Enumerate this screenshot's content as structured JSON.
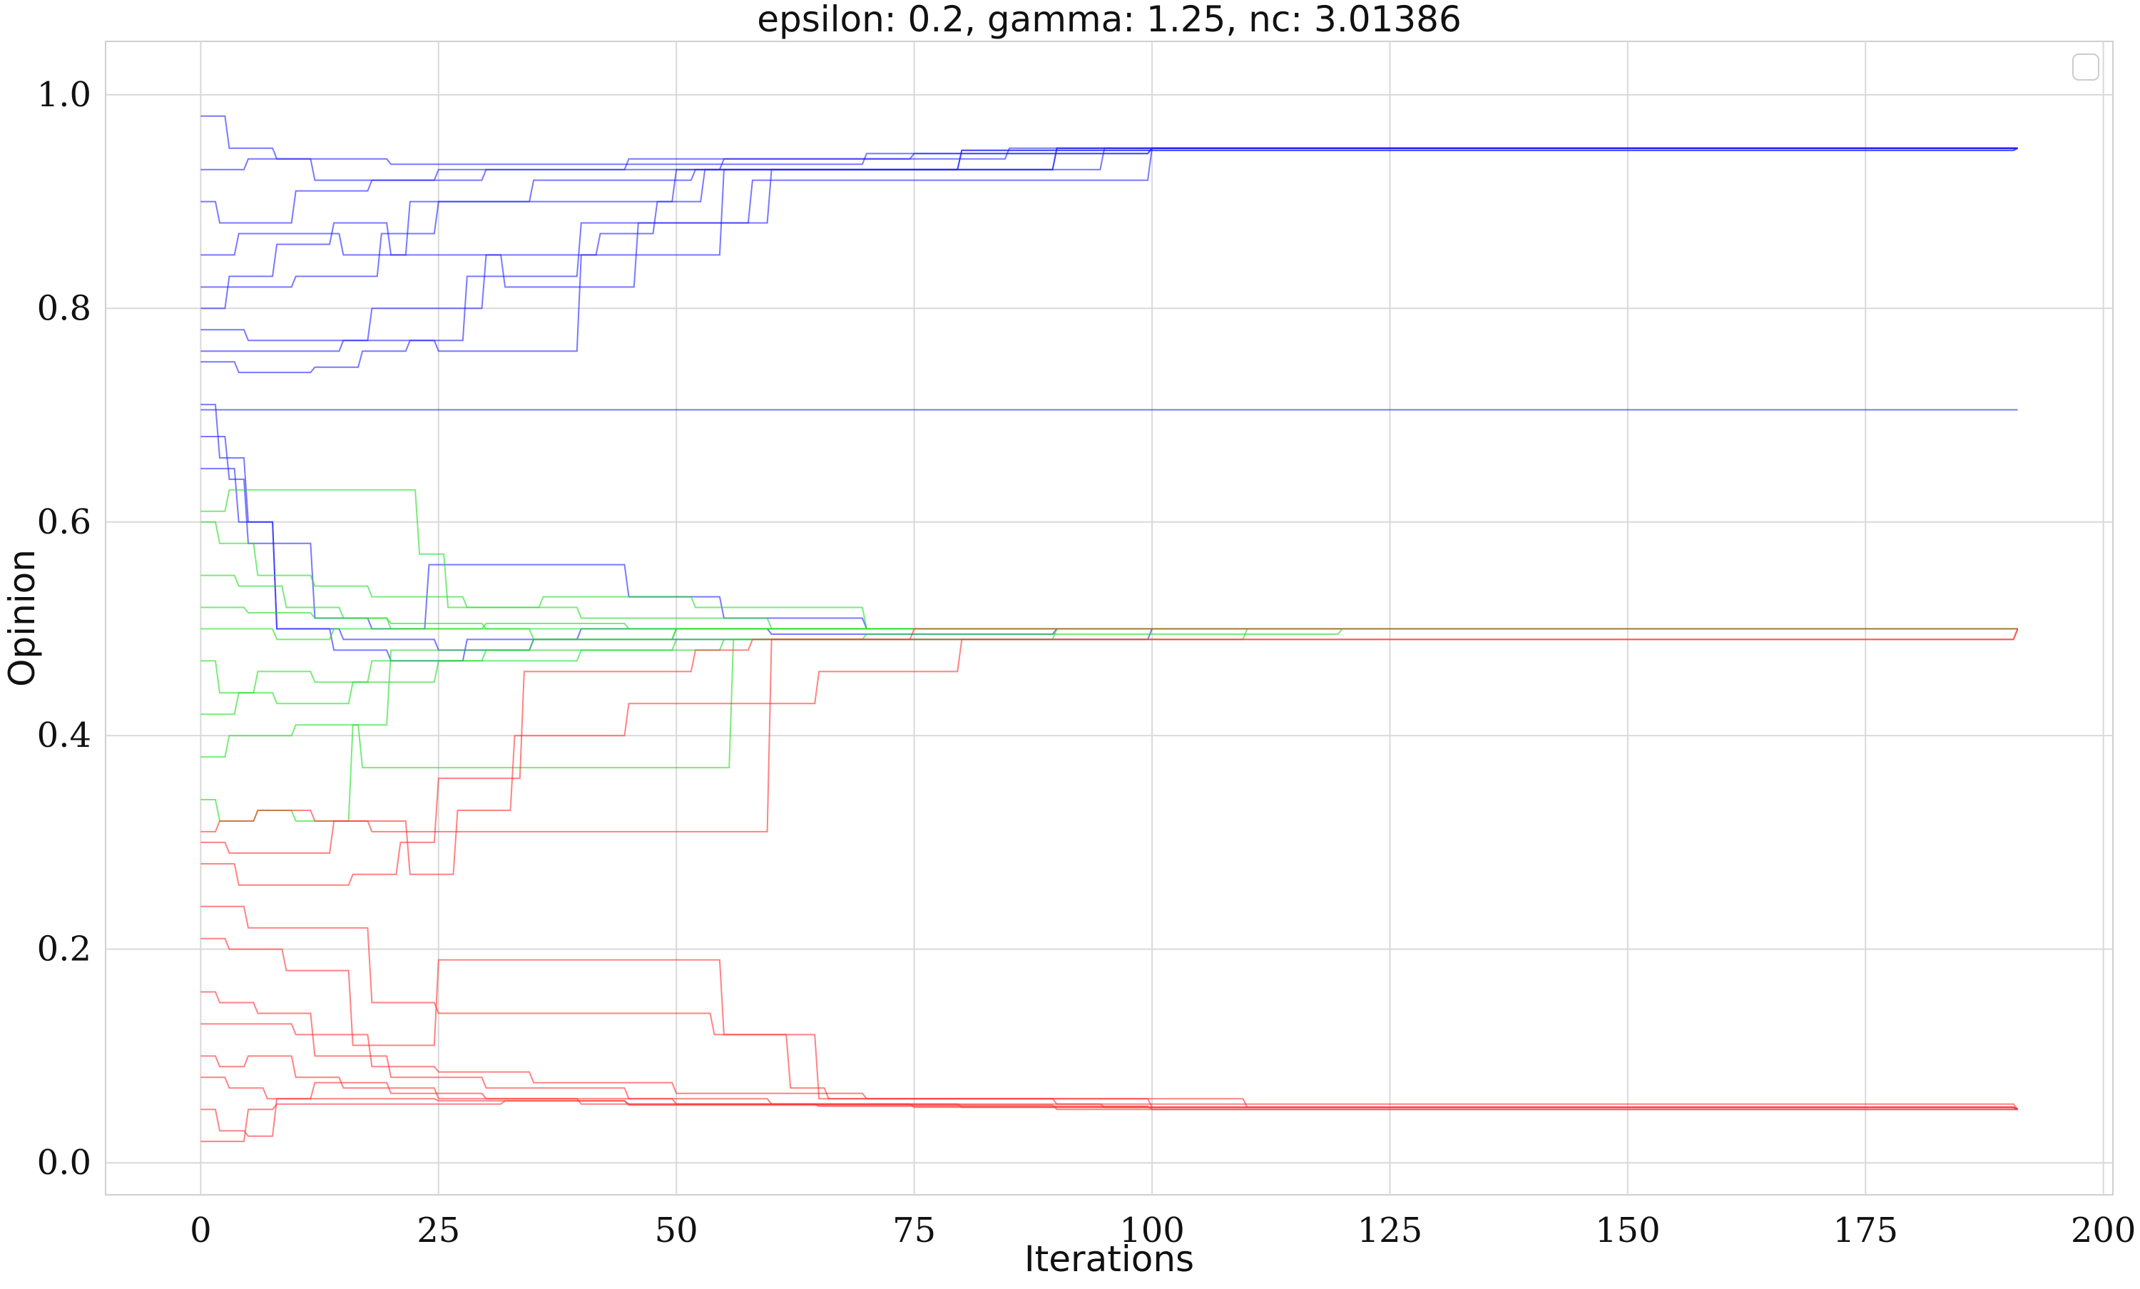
{
  "chart_data": {
    "type": "line",
    "title": "epsilon: 0.2, gamma: 1.25, nc: 3.01386",
    "xlabel": "Iterations",
    "ylabel": "Opinion",
    "xlim": [
      -10,
      201
    ],
    "ylim": [
      -0.03,
      1.05
    ],
    "xticks": [
      0,
      25,
      50,
      75,
      100,
      125,
      150,
      175,
      200
    ],
    "yticks": [
      0.0,
      0.2,
      0.4,
      0.6,
      0.8,
      1.0
    ],
    "xtick_labels": [
      "0",
      "25",
      "50",
      "75",
      "100",
      "125",
      "150",
      "175",
      "200"
    ],
    "ytick_labels": [
      "0.0",
      "0.2",
      "0.4",
      "0.6",
      "0.8",
      "1.0"
    ],
    "grid": true,
    "legend": {
      "placement": "top-right",
      "entries": []
    },
    "colors": {
      "blue": "#1f1fff",
      "green": "#22dd22",
      "red": "#ff3030"
    },
    "series": [
      {
        "color": "blue",
        "x": [
          0,
          3,
          8,
          20,
          40,
          70,
          100,
          191
        ],
        "y": [
          0.98,
          0.95,
          0.94,
          0.935,
          0.935,
          0.945,
          0.95,
          0.95
        ]
      },
      {
        "color": "blue",
        "x": [
          0,
          5,
          12,
          25,
          45,
          75,
          100,
          191
        ],
        "y": [
          0.93,
          0.94,
          0.92,
          0.93,
          0.94,
          0.945,
          0.95,
          0.95
        ]
      },
      {
        "color": "blue",
        "x": [
          0,
          2,
          10,
          18,
          30,
          55,
          85,
          191
        ],
        "y": [
          0.9,
          0.88,
          0.91,
          0.92,
          0.93,
          0.94,
          0.95,
          0.95
        ]
      },
      {
        "color": "blue",
        "x": [
          0,
          4,
          15,
          22,
          35,
          52,
          80,
          191
        ],
        "y": [
          0.85,
          0.87,
          0.85,
          0.9,
          0.92,
          0.93,
          0.948,
          0.95
        ]
      },
      {
        "color": "blue",
        "x": [
          0,
          3,
          10,
          19,
          25,
          45,
          50,
          80,
          191
        ],
        "y": [
          0.82,
          0.82,
          0.83,
          0.87,
          0.9,
          0.9,
          0.93,
          0.948,
          0.95
        ]
      },
      {
        "color": "blue",
        "x": [
          0,
          5,
          12,
          18,
          30,
          42,
          48,
          53,
          90,
          191
        ],
        "y": [
          0.78,
          0.77,
          0.77,
          0.8,
          0.85,
          0.87,
          0.9,
          0.93,
          0.95,
          0.95
        ]
      },
      {
        "color": "blue",
        "x": [
          0,
          6,
          15,
          25,
          38,
          40,
          55,
          90,
          191
        ],
        "y": [
          0.76,
          0.76,
          0.77,
          0.76,
          0.76,
          0.85,
          0.93,
          0.95,
          0.95
        ]
      },
      {
        "color": "blue",
        "x": [
          0,
          4,
          12,
          17,
          22,
          28,
          40,
          60,
          95,
          191
        ],
        "y": [
          0.75,
          0.74,
          0.745,
          0.76,
          0.77,
          0.83,
          0.88,
          0.93,
          0.95,
          0.95
        ]
      },
      {
        "color": "blue",
        "x": [
          0,
          3,
          8,
          14,
          20,
          32,
          46,
          58,
          100,
          191
        ],
        "y": [
          0.8,
          0.83,
          0.86,
          0.88,
          0.85,
          0.82,
          0.88,
          0.92,
          0.95,
          0.95
        ]
      },
      {
        "color": "blue",
        "x": [
          0,
          191
        ],
        "y": [
          0.705,
          0.705
        ]
      },
      {
        "color": "blue",
        "x": [
          0,
          2,
          5,
          8,
          15,
          25,
          35,
          60,
          100,
          191
        ],
        "y": [
          0.71,
          0.66,
          0.6,
          0.5,
          0.49,
          0.48,
          0.49,
          0.49,
          0.5,
          0.5
        ]
      },
      {
        "color": "blue",
        "x": [
          0,
          3,
          5,
          12,
          18,
          24,
          35,
          45,
          55,
          70,
          100,
          191
        ],
        "y": [
          0.68,
          0.64,
          0.58,
          0.51,
          0.5,
          0.56,
          0.56,
          0.53,
          0.51,
          0.5,
          0.5,
          0.5
        ]
      },
      {
        "color": "blue",
        "x": [
          0,
          4,
          8,
          14,
          20,
          28,
          40,
          60,
          90,
          191
        ],
        "y": [
          0.65,
          0.6,
          0.5,
          0.48,
          0.47,
          0.49,
          0.5,
          0.495,
          0.5,
          0.5
        ]
      },
      {
        "color": "green",
        "x": [
          0,
          3,
          10,
          20,
          23,
          26,
          40,
          60,
          100,
          191
        ],
        "y": [
          0.61,
          0.63,
          0.63,
          0.63,
          0.57,
          0.52,
          0.51,
          0.5,
          0.5,
          0.5
        ]
      },
      {
        "color": "green",
        "x": [
          0,
          2,
          6,
          12,
          18,
          28,
          36,
          52,
          70,
          191
        ],
        "y": [
          0.6,
          0.58,
          0.55,
          0.54,
          0.53,
          0.52,
          0.53,
          0.52,
          0.5,
          0.5
        ]
      },
      {
        "color": "green",
        "x": [
          0,
          4,
          9,
          15,
          20,
          30,
          45,
          65,
          110,
          191
        ],
        "y": [
          0.55,
          0.54,
          0.52,
          0.51,
          0.5,
          0.505,
          0.5,
          0.5,
          0.5,
          0.5
        ]
      },
      {
        "color": "green",
        "x": [
          0,
          3,
          8,
          14,
          25,
          35,
          50,
          80,
          191
        ],
        "y": [
          0.5,
          0.5,
          0.49,
          0.5,
          0.5,
          0.49,
          0.5,
          0.5,
          0.5
        ]
      },
      {
        "color": "green",
        "x": [
          0,
          2,
          6,
          12,
          18,
          30,
          42,
          55,
          70,
          120,
          191
        ],
        "y": [
          0.47,
          0.44,
          0.46,
          0.45,
          0.47,
          0.48,
          0.48,
          0.49,
          0.495,
          0.5,
          0.5
        ]
      },
      {
        "color": "green",
        "x": [
          0,
          4,
          8,
          16,
          25,
          40,
          50,
          60,
          90,
          191
        ],
        "y": [
          0.42,
          0.44,
          0.43,
          0.45,
          0.47,
          0.48,
          0.49,
          0.49,
          0.5,
          0.5
        ]
      },
      {
        "color": "green",
        "x": [
          0,
          3,
          10,
          17,
          26,
          45,
          54,
          56,
          70,
          110,
          191
        ],
        "y": [
          0.38,
          0.4,
          0.41,
          0.37,
          0.37,
          0.37,
          0.37,
          0.49,
          0.49,
          0.5,
          0.5
        ]
      },
      {
        "color": "green",
        "x": [
          0,
          2,
          6,
          10,
          16,
          20,
          35,
          50,
          70,
          100,
          191
        ],
        "y": [
          0.34,
          0.32,
          0.33,
          0.32,
          0.41,
          0.48,
          0.49,
          0.5,
          0.5,
          0.5,
          0.5
        ]
      },
      {
        "color": "green",
        "x": [
          0,
          5,
          12,
          20,
          30,
          55,
          75,
          191
        ],
        "y": [
          0.52,
          0.515,
          0.51,
          0.505,
          0.5,
          0.5,
          0.5,
          0.5
        ]
      },
      {
        "color": "red",
        "x": [
          0,
          2,
          6,
          12,
          18,
          26,
          40,
          55,
          60,
          70,
          191
        ],
        "y": [
          0.31,
          0.32,
          0.33,
          0.32,
          0.31,
          0.31,
          0.31,
          0.31,
          0.49,
          0.49,
          0.5
        ]
      },
      {
        "color": "red",
        "x": [
          0,
          3,
          8,
          14,
          22,
          27,
          33,
          45,
          56,
          65,
          80,
          191
        ],
        "y": [
          0.3,
          0.29,
          0.29,
          0.32,
          0.27,
          0.33,
          0.4,
          0.43,
          0.43,
          0.46,
          0.49,
          0.5
        ]
      },
      {
        "color": "red",
        "x": [
          0,
          4,
          10,
          16,
          21,
          25,
          34,
          40,
          52,
          58,
          75,
          191
        ],
        "y": [
          0.28,
          0.26,
          0.26,
          0.27,
          0.3,
          0.36,
          0.46,
          0.46,
          0.48,
          0.49,
          0.5,
          0.5
        ]
      },
      {
        "color": "red",
        "x": [
          0,
          5,
          13,
          18,
          25,
          50,
          54,
          62,
          66,
          90,
          191
        ],
        "y": [
          0.24,
          0.22,
          0.22,
          0.15,
          0.14,
          0.14,
          0.12,
          0.07,
          0.06,
          0.055,
          0.05
        ]
      },
      {
        "color": "red",
        "x": [
          0,
          3,
          9,
          16,
          25,
          54,
          55,
          65,
          100,
          191
        ],
        "y": [
          0.21,
          0.2,
          0.18,
          0.11,
          0.19,
          0.19,
          0.12,
          0.06,
          0.052,
          0.05
        ]
      },
      {
        "color": "red",
        "x": [
          0,
          2,
          6,
          12,
          20,
          30,
          45,
          60,
          95,
          191
        ],
        "y": [
          0.16,
          0.15,
          0.14,
          0.1,
          0.08,
          0.07,
          0.06,
          0.055,
          0.052,
          0.05
        ]
      },
      {
        "color": "red",
        "x": [
          0,
          4,
          10,
          18,
          25,
          35,
          50,
          70,
          110,
          191
        ],
        "y": [
          0.13,
          0.13,
          0.12,
          0.09,
          0.085,
          0.075,
          0.065,
          0.06,
          0.052,
          0.05
        ]
      },
      {
        "color": "red",
        "x": [
          0,
          2,
          5,
          10,
          15,
          25,
          40,
          65,
          100,
          191
        ],
        "y": [
          0.1,
          0.09,
          0.1,
          0.08,
          0.07,
          0.06,
          0.055,
          0.053,
          0.05,
          0.05
        ]
      },
      {
        "color": "red",
        "x": [
          0,
          3,
          7,
          12,
          20,
          30,
          50,
          80,
          191
        ],
        "y": [
          0.08,
          0.07,
          0.06,
          0.075,
          0.065,
          0.06,
          0.055,
          0.052,
          0.05
        ]
      },
      {
        "color": "red",
        "x": [
          0,
          2,
          5,
          8,
          15,
          25,
          45,
          75,
          191
        ],
        "y": [
          0.05,
          0.03,
          0.025,
          0.06,
          0.06,
          0.058,
          0.055,
          0.052,
          0.05
        ]
      },
      {
        "color": "red",
        "x": [
          0,
          3,
          5,
          8,
          18,
          32,
          45,
          90,
          191
        ],
        "y": [
          0.02,
          0.02,
          0.05,
          0.055,
          0.055,
          0.058,
          0.054,
          0.05,
          0.05
        ]
      }
    ]
  }
}
